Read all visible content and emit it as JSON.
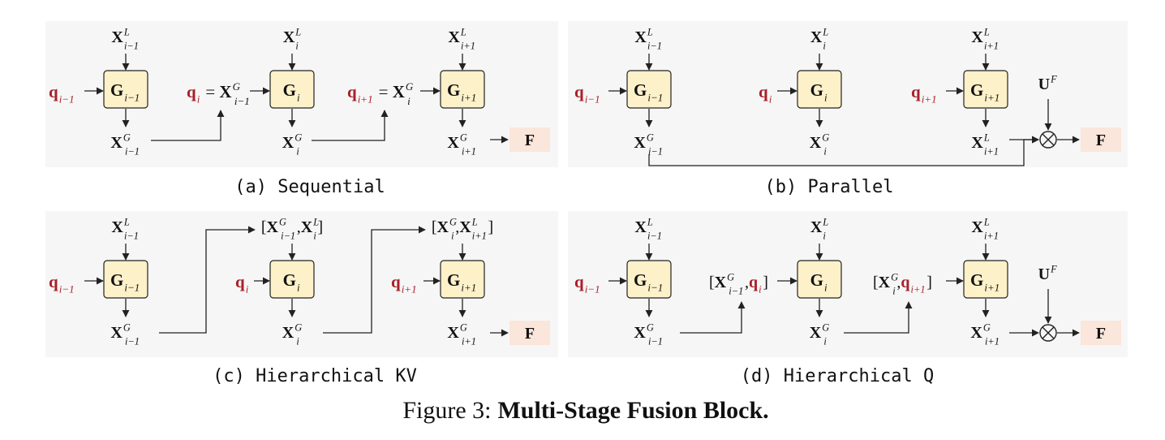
{
  "figure": {
    "number_label": "Figure 3:",
    "title": "Multi-Stage Fusion Block."
  },
  "panels": {
    "a": {
      "caption": "(a) Sequential"
    },
    "b": {
      "caption": "(b) Parallel"
    },
    "c": {
      "caption": "(c) Hierarchical KV"
    },
    "d": {
      "caption": "(d) Hierarchical Q"
    }
  },
  "symbols": {
    "X": "X",
    "G": "G",
    "q": "q",
    "F": "F",
    "U": "U",
    "sup_L": "L",
    "sup_G": "G",
    "sup_F": "F",
    "sub_im1": "i−1",
    "sub_i": "i",
    "sub_ip1": "i+1",
    "equals": "=",
    "lbracket": "[",
    "rbracket": "]",
    "comma": ",",
    "otimes": "⊗"
  },
  "colors": {
    "query_red": "#a8202a",
    "block_fill": "#fdf1c9",
    "output_fill": "#fbe6dc",
    "panel_bg": "#f6f6f6"
  }
}
